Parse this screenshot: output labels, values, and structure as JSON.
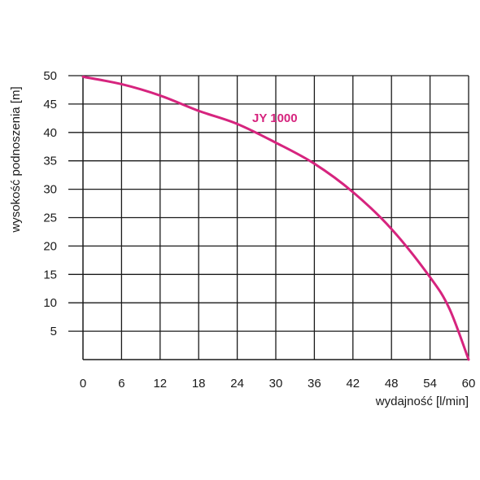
{
  "chart_data": {
    "type": "line",
    "title": "",
    "xlabel": "wydajność [l/min]",
    "ylabel": "wysokość podnoszenia [m]",
    "xlim": [
      0,
      60
    ],
    "ylim": [
      0,
      50
    ],
    "x_ticks": [
      "0",
      "6",
      "12",
      "18",
      "24",
      "30",
      "36",
      "42",
      "48",
      "54",
      "60"
    ],
    "y_ticks": [
      "5",
      "10",
      "15",
      "20",
      "25",
      "30",
      "35",
      "40",
      "45",
      "50"
    ],
    "grid": true,
    "series": [
      {
        "name": "JY 1000",
        "color": "#d6247e",
        "x": [
          0,
          6,
          12,
          18,
          24,
          30,
          36,
          42,
          48,
          54,
          57,
          60
        ],
        "y": [
          49.8,
          48.5,
          46.5,
          43.8,
          41.5,
          38.2,
          34.5,
          29.5,
          23,
          14.5,
          9,
          0
        ]
      }
    ]
  }
}
